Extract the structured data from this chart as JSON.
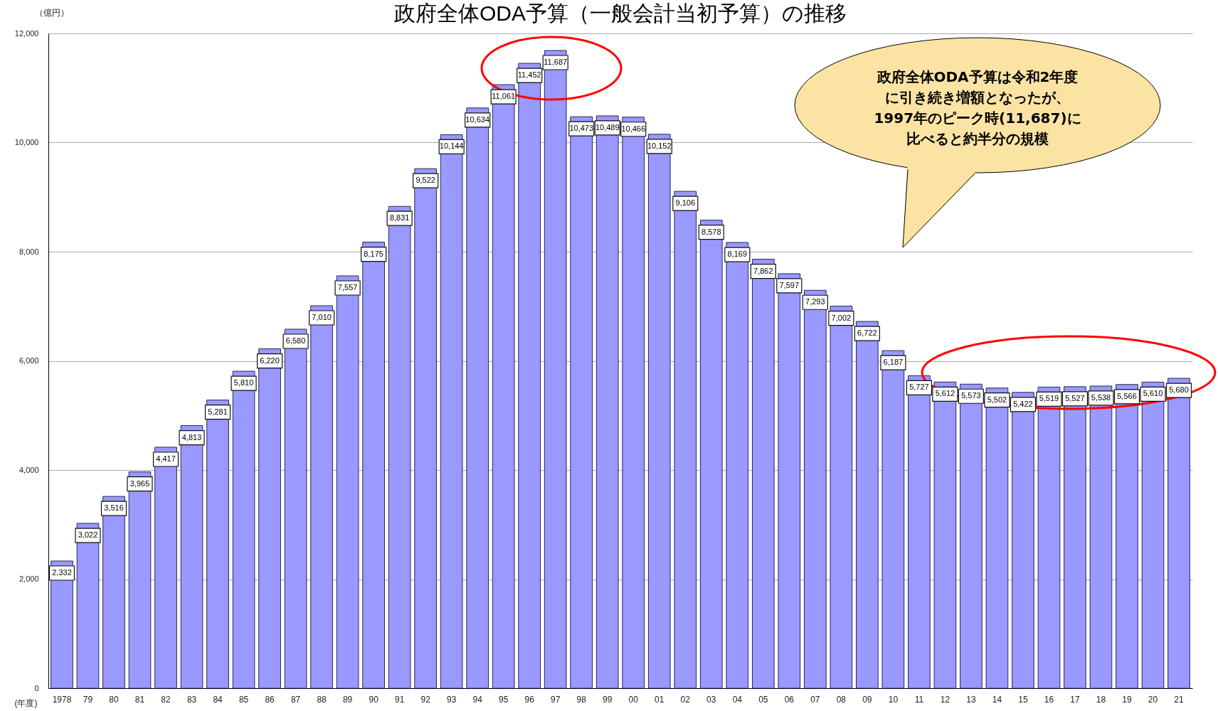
{
  "chart_data": {
    "type": "bar",
    "title": "政府全体ODA予算（一般会計当初予算）の推移",
    "xlabel": "(年度)",
    "ylabel": "（億円）",
    "categories": [
      "1978",
      "79",
      "80",
      "81",
      "82",
      "83",
      "84",
      "85",
      "86",
      "87",
      "88",
      "89",
      "90",
      "91",
      "92",
      "93",
      "94",
      "95",
      "96",
      "97",
      "98",
      "99",
      "00",
      "01",
      "02",
      "03",
      "04",
      "05",
      "06",
      "07",
      "08",
      "09",
      "10",
      "11",
      "12",
      "13",
      "14",
      "15",
      "16",
      "17",
      "18",
      "19",
      "20",
      "21"
    ],
    "values": [
      2332,
      3022,
      3516,
      3965,
      4417,
      4813,
      5281,
      5810,
      6220,
      6580,
      7010,
      7557,
      8175,
      8831,
      9522,
      10144,
      10634,
      11061,
      11452,
      11687,
      10473,
      10489,
      10466,
      10152,
      9106,
      8578,
      8169,
      7862,
      7597,
      7293,
      7002,
      6722,
      6187,
      5727,
      5612,
      5573,
      5502,
      5422,
      5519,
      5527,
      5538,
      5566,
      5610,
      5680
    ],
    "value_labels": [
      "2,332",
      "3,022",
      "3,516",
      "3,965",
      "4,417",
      "4,813",
      "5,281",
      "5,810",
      "6,220",
      "6,580",
      "7,010",
      "7,557",
      "8,175",
      "8,831",
      "9,522",
      "10,144",
      "10,634",
      "11,061",
      "11,452",
      "11,687",
      "10,473",
      "10,489",
      "10,466",
      "10,152",
      "9,106",
      "8,578",
      "8,169",
      "7,862",
      "7,597",
      "7,293",
      "7,002",
      "6,722",
      "6,187",
      "5,727",
      "5,612",
      "5,573",
      "5,502",
      "5,422",
      "5,519",
      "5,527",
      "5,538",
      "5,566",
      "5,610",
      "5,680"
    ],
    "color": "#9999ff",
    "ylim": [
      0,
      12000
    ],
    "yticks": [
      0,
      {
        "value": 2000,
        "label": "2,000"
      },
      {
        "value": 4000,
        "label": "4,000"
      },
      {
        "value": 6000,
        "label": "6,000"
      },
      {
        "value": 8000,
        "label": "8,000"
      },
      {
        "value": 10000,
        "label": "10,000"
      },
      {
        "value": 12000,
        "label": "12,000"
      }
    ],
    "grid": "y",
    "annotations": [
      "政府全体ODA予算は令和2年度に引き続き増額となったが、1997年のピーク時(11,687)に比べると約半分の規模"
    ]
  }
}
